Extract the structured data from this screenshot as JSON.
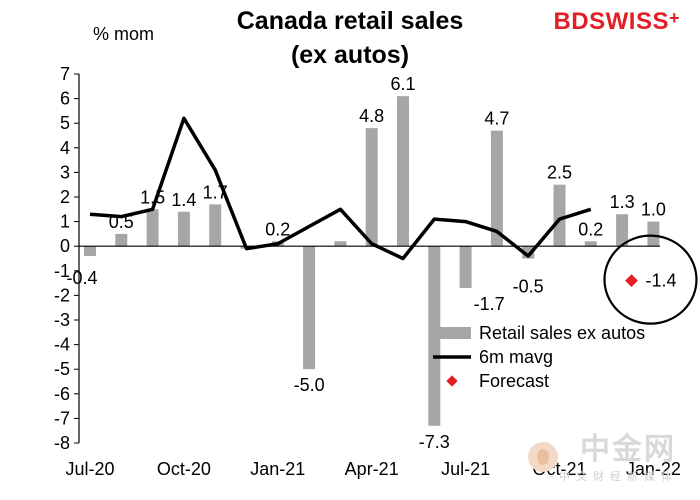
{
  "header": {
    "title_line1": "Canada retail sales",
    "title_line2": "(ex autos)",
    "unit_label": "% mom"
  },
  "brand": {
    "text_bd": "BD",
    "text_swiss": "SWISS",
    "mark": "+"
  },
  "watermark": {
    "main": "中金网",
    "sub": "中文财经新媒体"
  },
  "colors": {
    "bars": "#a6a6a6",
    "line": "#000000",
    "forecast": "#e31e24",
    "circle": "#000000"
  },
  "chart_data": {
    "type": "bar",
    "ylim": [
      -8,
      7
    ],
    "yticks": [
      7,
      6,
      5,
      4,
      3,
      2,
      1,
      0,
      -1,
      -2,
      -3,
      -4,
      -5,
      -6,
      -7,
      -8
    ],
    "xtick_labels": [
      "Jul-20",
      "Oct-20",
      "Jan-21",
      "Apr-21",
      "Jul-21",
      "Oct-21",
      "Jan-22"
    ],
    "xtick_positions": [
      0,
      3,
      6,
      9,
      12,
      15,
      18
    ],
    "series": [
      {
        "name": "Retail sales ex autos",
        "type": "bar",
        "values": [
          -0.4,
          0.5,
          1.5,
          1.4,
          1.7,
          -0.1,
          0.2,
          -5.0,
          0.2,
          4.8,
          6.1,
          -7.3,
          -1.7,
          4.7,
          -0.5,
          2.5,
          0.2,
          1.3,
          1.0
        ],
        "data_labels": [
          "-0.4",
          "0.5",
          "1.5",
          "1.4",
          "1.7",
          "",
          "0.2",
          "-5.0",
          "",
          "4.8",
          "6.1",
          "-7.3",
          "-1.7",
          "4.7",
          "-0.5",
          "2.5",
          "0.2",
          "1.3",
          "1.0"
        ]
      },
      {
        "name": "6m mavg",
        "type": "line",
        "values": [
          1.3,
          1.2,
          1.5,
          5.2,
          3.1,
          -0.1,
          0.1,
          0.8,
          1.5,
          0.1,
          -0.5,
          1.1,
          1.0,
          0.6,
          -0.4,
          1.1,
          1.5
        ]
      },
      {
        "name": "Forecast",
        "type": "scatter",
        "x_index": 17.3,
        "values": [
          -1.4
        ],
        "data_labels": [
          "-1.4"
        ]
      }
    ],
    "legend": [
      "Retail sales ex autos",
      "6m mavg",
      "Forecast"
    ],
    "legend_position": "bottom-right",
    "grid": false
  }
}
